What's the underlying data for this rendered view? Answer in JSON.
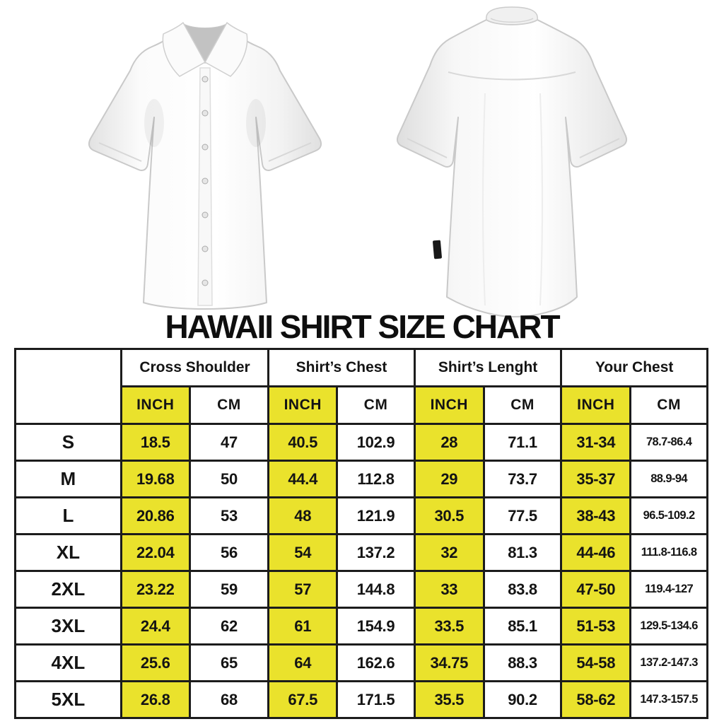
{
  "title": "HAWAII SHIRT SIZE CHART",
  "images": {
    "front_shirt_alt": "white short-sleeve button-up shirt, front view",
    "back_shirt_alt": "white short-sleeve button-up shirt, back view"
  },
  "chart_data": {
    "type": "table",
    "title": "HAWAII SHIRT SIZE CHART",
    "corner_label": "",
    "column_groups": [
      "Cross Shoulder",
      "Shirt’s Chest",
      "Shirt’s Lenght",
      "Your Chest"
    ],
    "unit_headers": [
      "INCH",
      "CM",
      "INCH",
      "CM",
      "INCH",
      "CM",
      "INCH",
      "CM"
    ],
    "sizes": [
      "S",
      "M",
      "L",
      "XL",
      "2XL",
      "3XL",
      "4XL",
      "5XL"
    ],
    "rows": [
      [
        "18.5",
        "47",
        "40.5",
        "102.9",
        "28",
        "71.1",
        "31-34",
        "78.7-86.4"
      ],
      [
        "19.68",
        "50",
        "44.4",
        "112.8",
        "29",
        "73.7",
        "35-37",
        "88.9-94"
      ],
      [
        "20.86",
        "53",
        "48",
        "121.9",
        "30.5",
        "77.5",
        "38-43",
        "96.5-109.2"
      ],
      [
        "22.04",
        "56",
        "54",
        "137.2",
        "32",
        "81.3",
        "44-46",
        "111.8-116.8"
      ],
      [
        "23.22",
        "59",
        "57",
        "144.8",
        "33",
        "83.8",
        "47-50",
        "119.4-127"
      ],
      [
        "24.4",
        "62",
        "61",
        "154.9",
        "33.5",
        "85.1",
        "51-53",
        "129.5-134.6"
      ],
      [
        "25.6",
        "65",
        "64",
        "162.6",
        "34.75",
        "88.3",
        "54-58",
        "137.2-147.3"
      ],
      [
        "26.8",
        "68",
        "67.5",
        "171.5",
        "35.5",
        "90.2",
        "58-62",
        "147.3-157.5"
      ]
    ],
    "layout_hints": {
      "highlighted_columns": "INCH columns filled yellow",
      "grid": "on, heavy black borders"
    }
  },
  "colors": {
    "highlight_yellow": "#eae22c",
    "border_black": "#1c1c1c",
    "text": "#141414",
    "background": "#ffffff"
  }
}
